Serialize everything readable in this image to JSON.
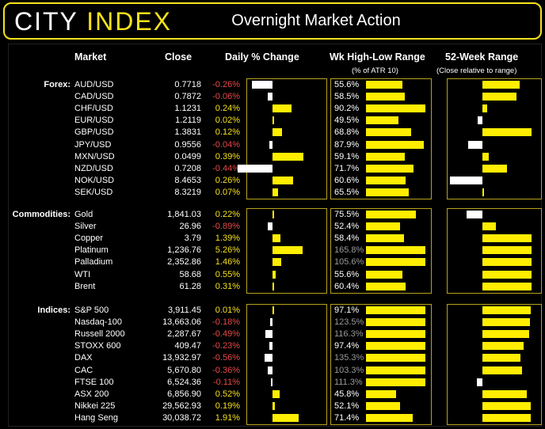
{
  "header": {
    "logo_city": "CITY",
    "logo_index": "INDEX",
    "title": "Overnight Market Action"
  },
  "columns": {
    "market": "Market",
    "close": "Close",
    "daily": "Daily % Change",
    "wk": "Wk High-Low Range",
    "wk_sub": "(% of ATR 10)",
    "yr": "52-Week Range",
    "yr_sub": "(Close relative to range)"
  },
  "sections": [
    {
      "label": "Forex:",
      "rows": [
        {
          "market": "AUD/USD",
          "close": "0.7718",
          "change": "-0.26%",
          "chg": -0.26,
          "wk": "55.6%",
          "wkv": 55.6,
          "yr": 0.76,
          "yr_side": "pos"
        },
        {
          "market": "CAD/USD",
          "close": "0.7872",
          "change": "-0.06%",
          "chg": -0.06,
          "wk": "58.5%",
          "wkv": 58.5,
          "yr": 0.7,
          "yr_side": "pos"
        },
        {
          "market": "CHF/USD",
          "close": "1.1231",
          "change": "0.24%",
          "chg": 0.24,
          "wk": "90.2%",
          "wkv": 90.2,
          "yr": 0.09,
          "yr_side": "pos"
        },
        {
          "market": "EUR/USD",
          "close": "1.2119",
          "change": "0.02%",
          "chg": 0.02,
          "wk": "49.5%",
          "wkv": 49.5,
          "yr": 0.13,
          "yr_side": "neg"
        },
        {
          "market": "GBP/USD",
          "close": "1.3831",
          "change": "0.12%",
          "chg": 0.12,
          "wk": "68.8%",
          "wkv": 68.8,
          "yr": 1.0,
          "yr_side": "pos"
        },
        {
          "market": "JPY/USD",
          "close": "0.9556",
          "change": "-0.04%",
          "chg": -0.04,
          "wk": "87.9%",
          "wkv": 87.9,
          "yr": 0.4,
          "yr_side": "neg"
        },
        {
          "market": "MXN/USD",
          "close": "0.0499",
          "change": "0.39%",
          "chg": 0.39,
          "wk": "59.1%",
          "wkv": 59.1,
          "yr": 0.13,
          "yr_side": "pos"
        },
        {
          "market": "NZD/USD",
          "close": "0.7208",
          "change": "-0.44%",
          "chg": -0.44,
          "wk": "71.7%",
          "wkv": 71.7,
          "yr": 0.5,
          "yr_side": "pos"
        },
        {
          "market": "NOK/USD",
          "close": "8.4653",
          "change": "0.26%",
          "chg": 0.26,
          "wk": "60.6%",
          "wkv": 60.6,
          "yr": 0.91,
          "yr_side": "neg"
        },
        {
          "market": "SEK/USD",
          "close": "8.3219",
          "change": "0.07%",
          "chg": 0.07,
          "wk": "65.5%",
          "wkv": 65.5,
          "yr": 0.02,
          "yr_side": "pos"
        }
      ]
    },
    {
      "label": "Commodities:",
      "rows": [
        {
          "market": "Gold",
          "close": "1,841.03",
          "change": "0.22%",
          "chg": 0.22,
          "wk": "75.5%",
          "wkv": 75.5,
          "yr": 0.45,
          "yr_side": "neg"
        },
        {
          "market": "Silver",
          "close": "26.96",
          "change": "-0.89%",
          "chg": -0.89,
          "wk": "52.4%",
          "wkv": 52.4,
          "yr": 0.28,
          "yr_side": "pos"
        },
        {
          "market": "Copper",
          "close": "3.79",
          "change": "1.39%",
          "chg": 1.39,
          "wk": "58.4%",
          "wkv": 58.4,
          "yr": 1.0,
          "yr_side": "pos"
        },
        {
          "market": "Platinum",
          "close": "1,236.76",
          "change": "5.26%",
          "chg": 5.26,
          "wk": "165.8%",
          "wkv": 165.8,
          "yr": 1.0,
          "yr_side": "pos"
        },
        {
          "market": "Palladium",
          "close": "2,352.86",
          "change": "1.46%",
          "chg": 1.46,
          "wk": "105.6%",
          "wkv": 105.6,
          "yr": 1.0,
          "yr_side": "pos"
        },
        {
          "market": "WTI",
          "close": "58.68",
          "change": "0.55%",
          "chg": 0.55,
          "wk": "55.6%",
          "wkv": 55.6,
          "yr": 1.0,
          "yr_side": "pos"
        },
        {
          "market": "Brent",
          "close": "61.28",
          "change": "0.31%",
          "chg": 0.31,
          "wk": "60.4%",
          "wkv": 60.4,
          "yr": 1.0,
          "yr_side": "pos"
        }
      ]
    },
    {
      "label": "Indices:",
      "rows": [
        {
          "market": "S&P 500",
          "close": "3,911.45",
          "change": "0.01%",
          "chg": 0.01,
          "wk": "97.1%",
          "wkv": 97.1,
          "yr": 0.98,
          "yr_side": "pos"
        },
        {
          "market": "Nasdaq-100",
          "close": "13,663.06",
          "change": "-0.18%",
          "chg": -0.18,
          "wk": "123.5%",
          "wkv": 123.5,
          "yr": 0.96,
          "yr_side": "pos"
        },
        {
          "market": "Russell 2000",
          "close": "2,287.67",
          "change": "-0.49%",
          "chg": -0.49,
          "wk": "116.3%",
          "wkv": 116.3,
          "yr": 0.95,
          "yr_side": "pos"
        },
        {
          "market": "STOXX 600",
          "close": "409.47",
          "change": "-0.23%",
          "chg": -0.23,
          "wk": "97.4%",
          "wkv": 97.4,
          "yr": 0.84,
          "yr_side": "pos"
        },
        {
          "market": "DAX",
          "close": "13,932.97",
          "change": "-0.56%",
          "chg": -0.56,
          "wk": "135.3%",
          "wkv": 135.3,
          "yr": 0.78,
          "yr_side": "pos"
        },
        {
          "market": "CAC",
          "close": "5,670.80",
          "change": "-0.36%",
          "chg": -0.36,
          "wk": "103.3%",
          "wkv": 103.3,
          "yr": 0.8,
          "yr_side": "pos"
        },
        {
          "market": "FTSE 100",
          "close": "6,524.36",
          "change": "-0.11%",
          "chg": -0.11,
          "wk": "111.3%",
          "wkv": 111.3,
          "yr": 0.15,
          "yr_side": "neg"
        },
        {
          "market": "ASX 200",
          "close": "6,856.90",
          "change": "0.52%",
          "chg": 0.52,
          "wk": "45.8%",
          "wkv": 45.8,
          "yr": 0.9,
          "yr_side": "pos"
        },
        {
          "market": "Nikkei 225",
          "close": "29,562.93",
          "change": "0.19%",
          "chg": 0.19,
          "wk": "52.1%",
          "wkv": 52.1,
          "yr": 0.98,
          "yr_side": "pos"
        },
        {
          "market": "Hang Seng",
          "close": "30,038.72",
          "change": "1.91%",
          "chg": 1.91,
          "wk": "71.4%",
          "wkv": 71.4,
          "yr": 0.99,
          "yr_side": "pos"
        }
      ]
    }
  ],
  "colors": {
    "accent": "#f7e11b",
    "bar": "#ffee00",
    "negative": "#e84848",
    "border": "#b8a21c"
  }
}
